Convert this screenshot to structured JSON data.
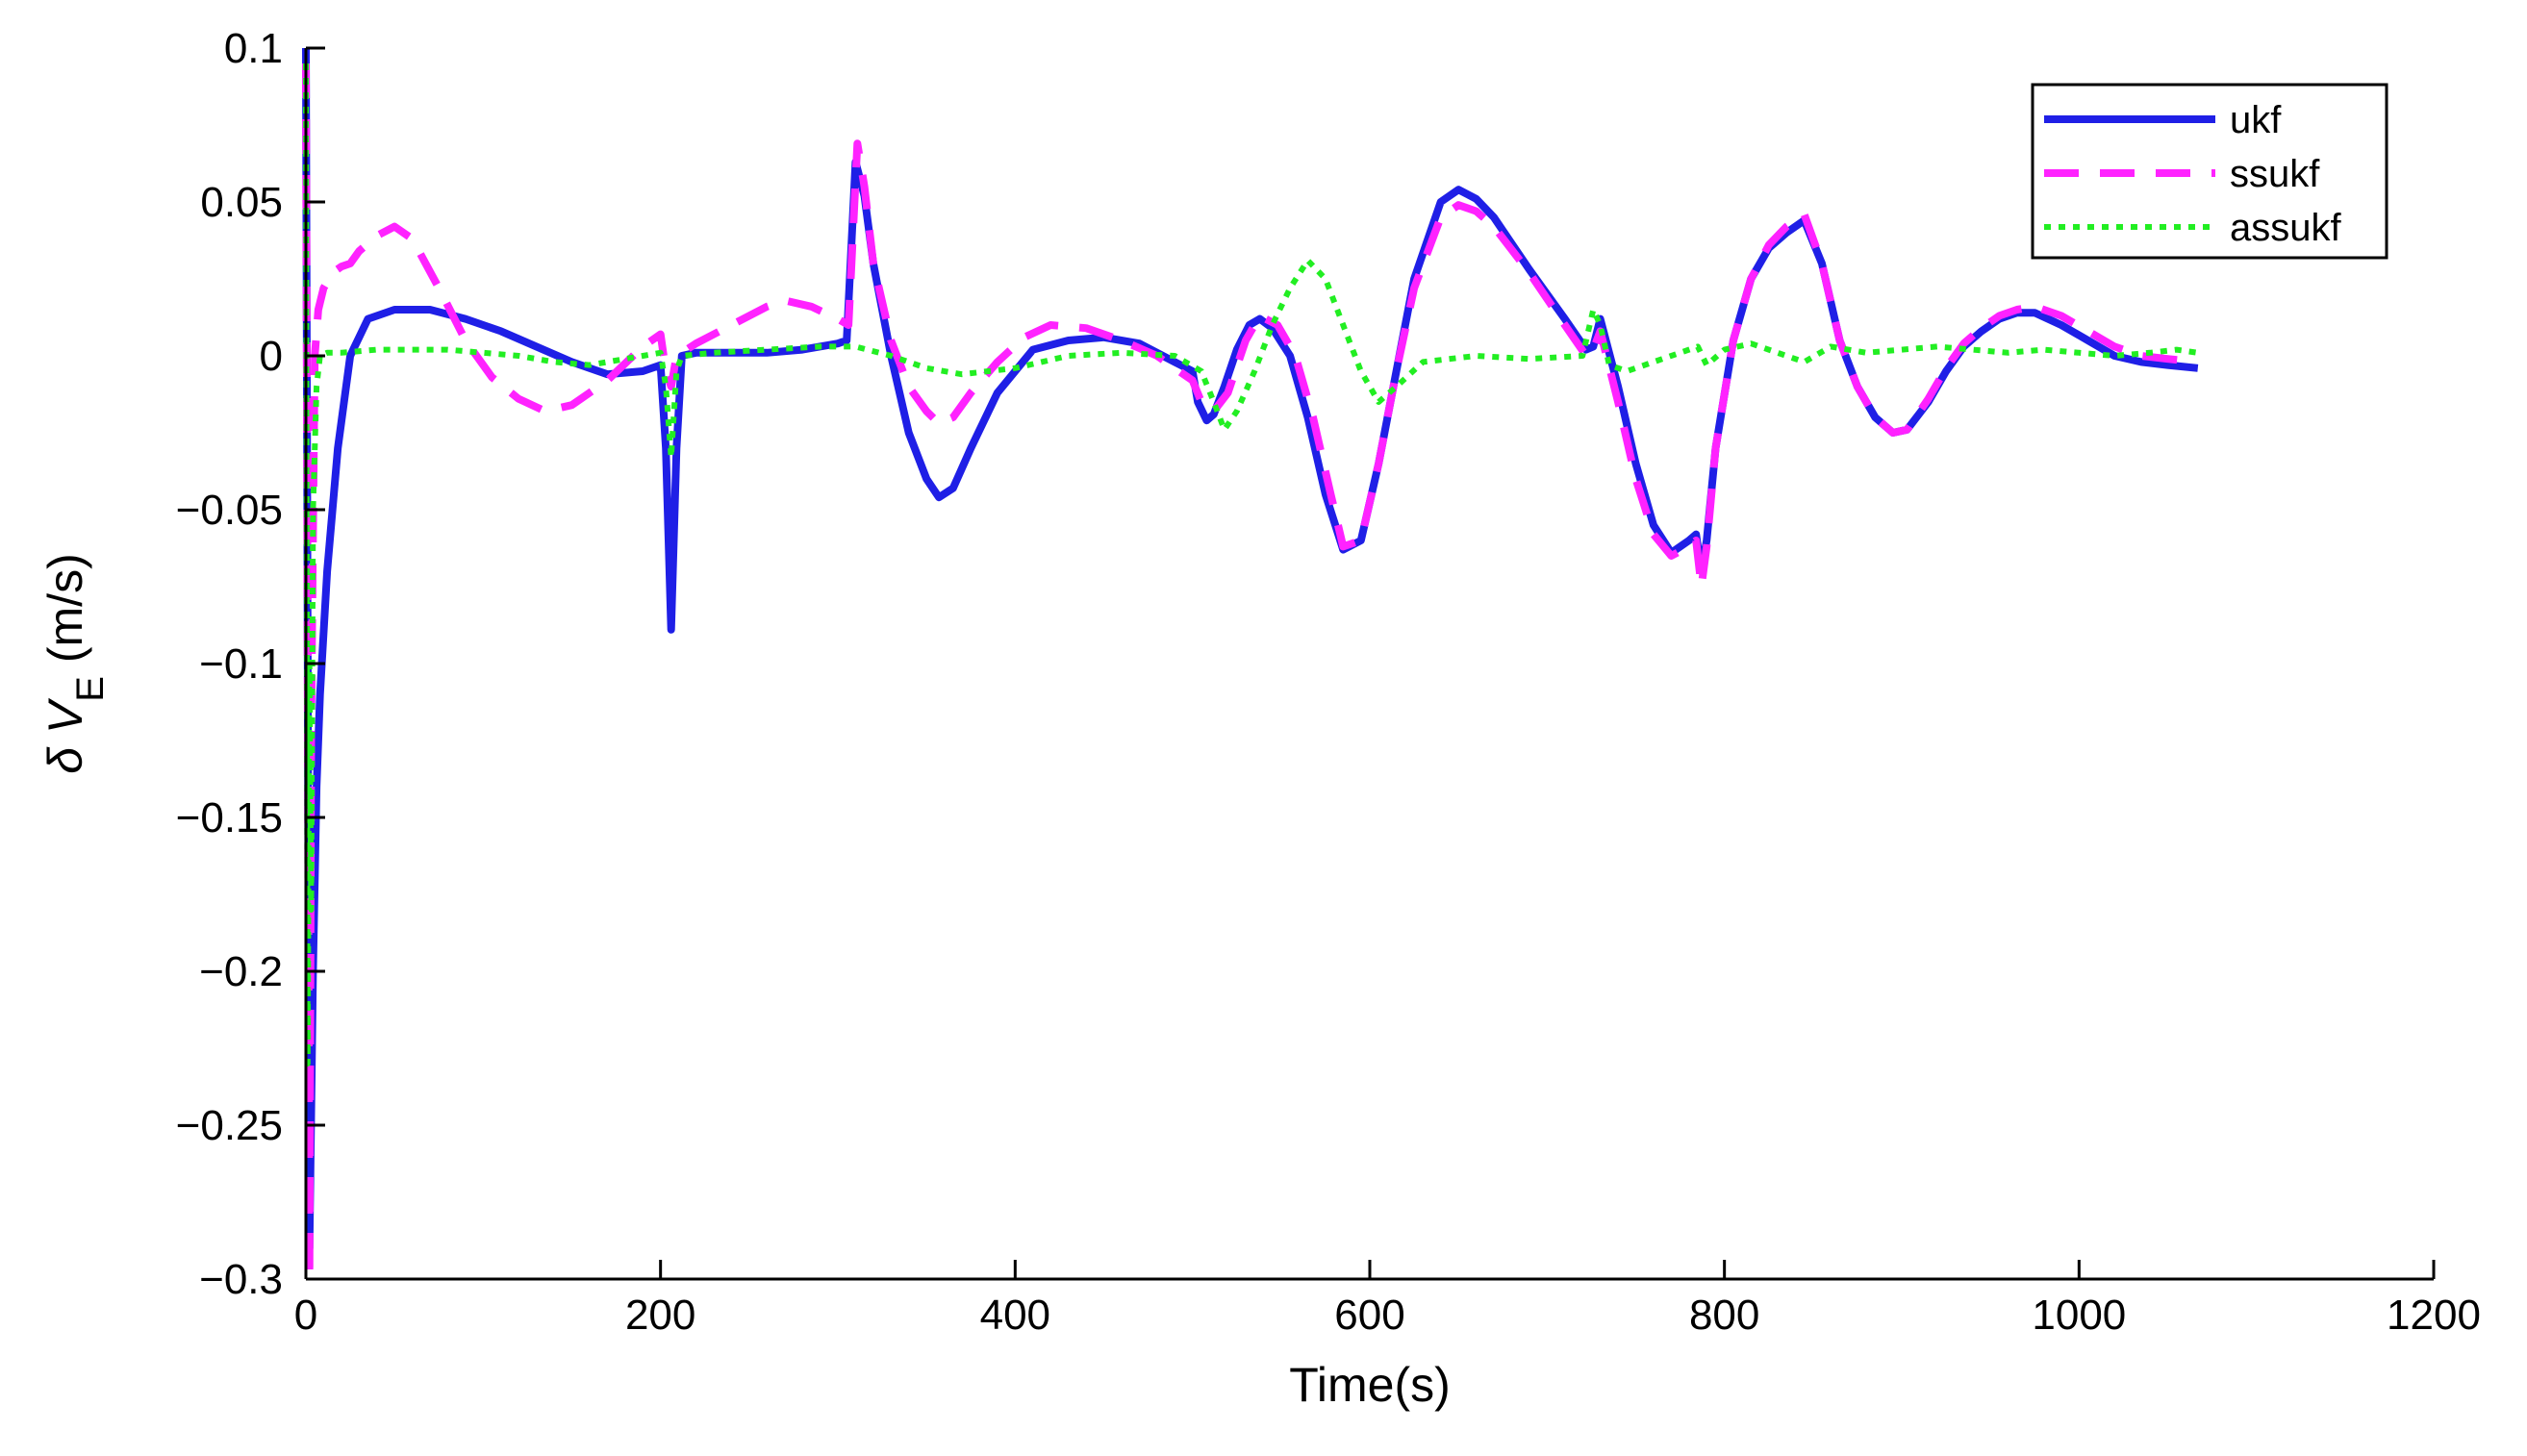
{
  "chart_data": {
    "type": "line",
    "title": "",
    "xlabel": "Time(s)",
    "ylabel": {
      "prefix": "δ V",
      "subscript": "E",
      "suffix": " (m/s)"
    },
    "xlim": [
      0,
      1200
    ],
    "ylim": [
      -0.3,
      0.1
    ],
    "xticks": [
      0,
      200,
      400,
      600,
      800,
      1000,
      1200
    ],
    "xtick_labels": [
      "0",
      "200",
      "400",
      "600",
      "800",
      "1000",
      "1200"
    ],
    "yticks": [
      0.1,
      0.05,
      0,
      -0.05,
      -0.1,
      -0.15,
      -0.2,
      -0.25,
      -0.3
    ],
    "ytick_labels": [
      "0.1",
      "0.05",
      "0",
      "−0.05",
      "−0.1",
      "−0.15",
      "−0.2",
      "−0.25",
      "−0.3"
    ],
    "grid": false,
    "legend_position": "top-right",
    "series": [
      {
        "name": "ukf",
        "color": "#1f1fe6",
        "style": "solid",
        "x": [
          0,
          2,
          4,
          6,
          8,
          12,
          18,
          25,
          35,
          50,
          70,
          90,
          110,
          130,
          150,
          170,
          190,
          200,
          203,
          206,
          209,
          212,
          220,
          240,
          260,
          280,
          300,
          305,
          310,
          315,
          320,
          330,
          340,
          350,
          357,
          365,
          375,
          390,
          410,
          430,
          450,
          470,
          490,
          500,
          503,
          508,
          512,
          518,
          525,
          532,
          538,
          545,
          555,
          565,
          575,
          585,
          595,
          605,
          615,
          625,
          640,
          650,
          660,
          670,
          690,
          710,
          722,
          726,
          730,
          740,
          750,
          760,
          770,
          780,
          784,
          787,
          790,
          795,
          805,
          815,
          825,
          835,
          845,
          855,
          865,
          875,
          885,
          895,
          903,
          915,
          925,
          935,
          945,
          955,
          965,
          975,
          990,
          1005,
          1020,
          1035,
          1050,
          1067
        ],
        "y": [
          0.1,
          -0.29,
          -0.2,
          -0.14,
          -0.11,
          -0.07,
          -0.03,
          0.0,
          0.012,
          0.015,
          0.015,
          0.012,
          0.008,
          0.003,
          -0.002,
          -0.006,
          -0.005,
          -0.003,
          -0.03,
          -0.089,
          -0.03,
          0.0,
          0.001,
          0.001,
          0.001,
          0.002,
          0.004,
          0.005,
          0.063,
          0.052,
          0.03,
          0.0,
          -0.025,
          -0.04,
          -0.046,
          -0.043,
          -0.03,
          -0.012,
          0.002,
          0.005,
          0.006,
          0.004,
          -0.002,
          -0.005,
          -0.015,
          -0.021,
          -0.019,
          -0.01,
          0.002,
          0.01,
          0.012,
          0.009,
          0.0,
          -0.02,
          -0.045,
          -0.063,
          -0.06,
          -0.035,
          -0.005,
          0.025,
          0.05,
          0.054,
          0.051,
          0.045,
          0.028,
          0.012,
          0.002,
          0.003,
          0.012,
          -0.01,
          -0.035,
          -0.055,
          -0.064,
          -0.06,
          -0.058,
          -0.07,
          -0.06,
          -0.03,
          0.005,
          0.025,
          0.035,
          0.04,
          0.044,
          0.03,
          0.005,
          -0.01,
          -0.02,
          -0.025,
          -0.024,
          -0.015,
          -0.005,
          0.003,
          0.008,
          0.012,
          0.014,
          0.014,
          0.01,
          0.005,
          0.0,
          -0.002,
          -0.003,
          -0.004
        ]
      },
      {
        "name": "ssukf",
        "color": "#ff22ff",
        "style": "dashed",
        "x": [
          0,
          2,
          3,
          5,
          7,
          10,
          15,
          20,
          25,
          30,
          40,
          50,
          60,
          75,
          90,
          105,
          120,
          135,
          150,
          170,
          190,
          200,
          203,
          206,
          209,
          212,
          220,
          240,
          260,
          270,
          285,
          300,
          306,
          311,
          315,
          320,
          330,
          340,
          350,
          357,
          365,
          375,
          390,
          405,
          420,
          440,
          460,
          480,
          495,
          500,
          505,
          512,
          520,
          530,
          538,
          548,
          558,
          568,
          578,
          585,
          595,
          605,
          615,
          625,
          640,
          650,
          660,
          670,
          690,
          710,
          722,
          726,
          730,
          740,
          750,
          760,
          770,
          780,
          784,
          787,
          790,
          795,
          805,
          815,
          825,
          835,
          845,
          855,
          865,
          875,
          885,
          895,
          903,
          915,
          925,
          935,
          945,
          955,
          965,
          975,
          990,
          1005,
          1020,
          1035,
          1050,
          1067
        ],
        "y": [
          0.095,
          -0.3,
          -0.12,
          0.0,
          0.015,
          0.022,
          0.027,
          0.029,
          0.03,
          0.034,
          0.039,
          0.042,
          0.038,
          0.022,
          0.005,
          -0.007,
          -0.014,
          -0.018,
          -0.016,
          -0.008,
          0.003,
          0.007,
          -0.005,
          -0.01,
          0.0,
          0.001,
          0.004,
          0.01,
          0.016,
          0.018,
          0.016,
          0.012,
          0.01,
          0.069,
          0.055,
          0.03,
          0.005,
          -0.01,
          -0.018,
          -0.022,
          -0.02,
          -0.012,
          -0.002,
          0.006,
          0.01,
          0.009,
          0.005,
          0.0,
          -0.006,
          -0.008,
          -0.015,
          -0.018,
          -0.012,
          0.005,
          0.013,
          0.01,
          0.0,
          -0.02,
          -0.045,
          -0.062,
          -0.06,
          -0.035,
          -0.005,
          0.022,
          0.045,
          0.049,
          0.047,
          0.042,
          0.027,
          0.01,
          0.0,
          0.002,
          0.008,
          -0.015,
          -0.04,
          -0.058,
          -0.065,
          -0.062,
          -0.06,
          -0.075,
          -0.062,
          -0.03,
          0.005,
          0.025,
          0.036,
          0.042,
          0.046,
          0.03,
          0.005,
          -0.01,
          -0.02,
          -0.025,
          -0.024,
          -0.014,
          -0.004,
          0.004,
          0.009,
          0.013,
          0.015,
          0.016,
          0.013,
          0.008,
          0.003,
          0.0,
          -0.001,
          -0.002
        ]
      },
      {
        "name": "assukf",
        "color": "#22ee22",
        "style": "dotted",
        "x": [
          0,
          1,
          2,
          3,
          4,
          6,
          8,
          12,
          20,
          40,
          60,
          80,
          100,
          120,
          140,
          160,
          180,
          200,
          203,
          206,
          209,
          212,
          230,
          260,
          290,
          310,
          330,
          350,
          370,
          400,
          430,
          460,
          490,
          505,
          512,
          518,
          525,
          535,
          545,
          555,
          565,
          575,
          585,
          595,
          605,
          615,
          630,
          660,
          690,
          720,
          726,
          730,
          735,
          745,
          760,
          775,
          785,
          790,
          800,
          815,
          830,
          845,
          860,
          880,
          900,
          920,
          940,
          960,
          980,
          1000,
          1020,
          1040,
          1055,
          1067
        ],
        "y": [
          0.095,
          -0.23,
          -0.1,
          -0.18,
          -0.05,
          -0.01,
          0.0,
          0.001,
          0.001,
          0.002,
          0.002,
          0.002,
          0.001,
          0.0,
          -0.002,
          -0.003,
          -0.001,
          0.001,
          -0.01,
          -0.033,
          -0.005,
          0.0,
          0.001,
          0.002,
          0.003,
          0.003,
          0.0,
          -0.004,
          -0.006,
          -0.004,
          0.0,
          0.001,
          0.0,
          -0.005,
          -0.015,
          -0.024,
          -0.018,
          -0.005,
          0.01,
          0.022,
          0.031,
          0.025,
          0.01,
          -0.005,
          -0.015,
          -0.01,
          -0.002,
          0.0,
          -0.001,
          0.0,
          0.015,
          0.01,
          -0.003,
          -0.005,
          -0.002,
          0.001,
          0.003,
          -0.003,
          0.002,
          0.004,
          0.001,
          -0.002,
          0.003,
          0.001,
          0.002,
          0.003,
          0.002,
          0.001,
          0.002,
          0.001,
          0.0,
          0.001,
          0.002,
          0.001
        ]
      }
    ]
  }
}
